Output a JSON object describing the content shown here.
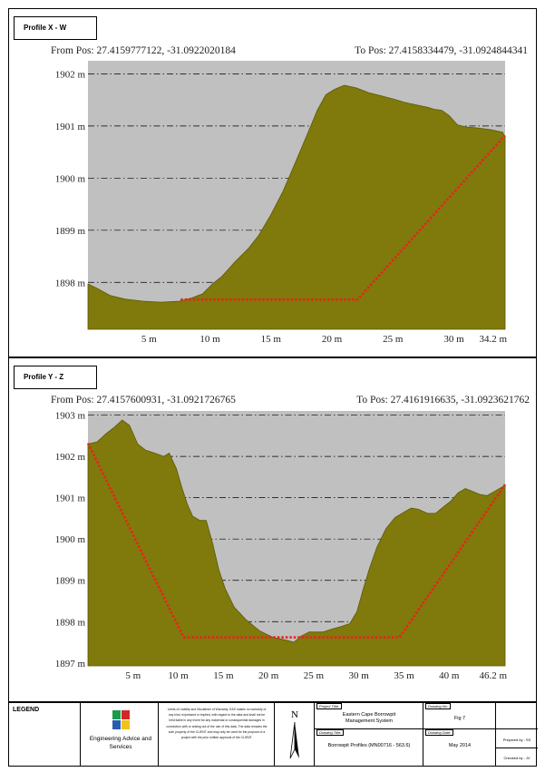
{
  "profiles": [
    {
      "title": "Profile X - W",
      "from_label": "From Pos: 27.4159777122, -31.0922020184",
      "to_label": "To Pos: 27.4158334479, -31.0924844341",
      "y_ticks": [
        "1902 m",
        "1901 m",
        "1900 m",
        "1899 m",
        "1898 m"
      ],
      "x_ticks": [
        "5 m",
        "10 m",
        "15 m",
        "20 m",
        "25 m",
        "30 m",
        "34.2 m"
      ]
    },
    {
      "title": "Profile Y - Z",
      "from_label": "From Pos: 27.4157600931, -31.0921726765",
      "to_label": "To Pos: 27.4161916635, -31.0923621762",
      "y_ticks": [
        "1903 m",
        "1902 m",
        "1901 m",
        "1900 m",
        "1899 m",
        "1898 m",
        "1897 m"
      ],
      "x_ticks": [
        "5 m",
        "10 m",
        "15 m",
        "20 m",
        "25 m",
        "30 m",
        "35 m",
        "40 m",
        "46.2 m"
      ]
    }
  ],
  "colors": {
    "terrain": "#7f7a0b",
    "sky": "#c0c0c0",
    "design": "#e8241e"
  },
  "title_block": {
    "legend": "LEGEND",
    "company": "Engineering Advice and Services",
    "disclaimer": "Limits of Liability and Disclaimer of Warranty: EAS makes no warranty of any kind, expressed or implied, with regard to the data and shall not be held liable in any event for any incidental or consequential damages in connection with or arising out of the use of this data. The data remains the sole property of the CLIENT and may only be used for the purpose of a project with the prior written approval of the CLIENT.",
    "north": "N",
    "project_title_label": "Project Title:",
    "project_title": "Eastern Cape Borrowpit Management System",
    "drawing_title_label": "Drawing Title:",
    "drawing_title": "Borrowpit Profiles (MN00716 - 563.6)",
    "drawing_no_label": "Drawing No:",
    "drawing_no": "Fig 7",
    "drawing_date_label": "Drawing Date:",
    "drawing_date": "May 2014",
    "prepared_by": "Prepared by : SS",
    "checked_by": "Checked by : JV"
  }
}
